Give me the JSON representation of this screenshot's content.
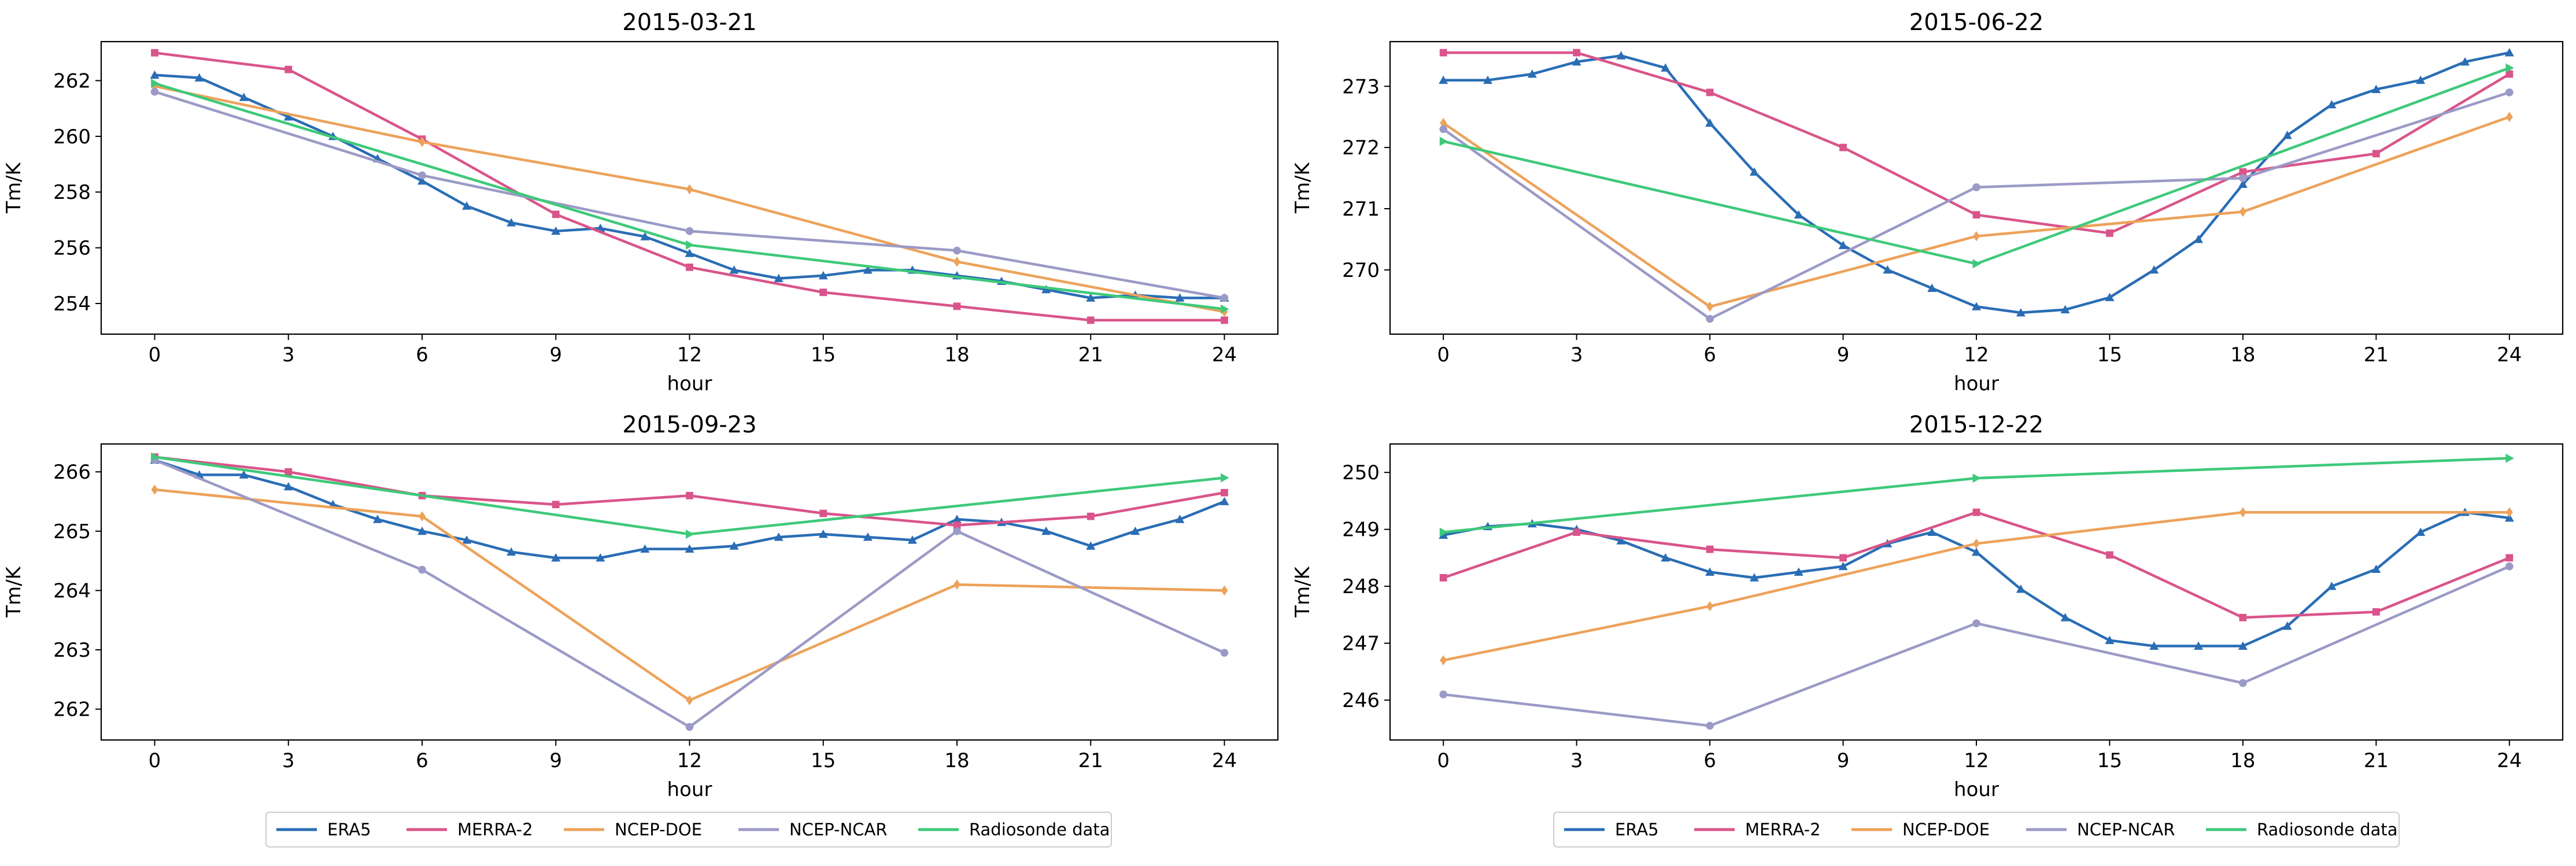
{
  "series_meta": [
    {
      "name": "ERA5",
      "color": "#2a6db5",
      "marker": "triangle"
    },
    {
      "name": "MERRA-2",
      "color": "#d9548a",
      "marker": "square"
    },
    {
      "name": "NCEP-DOE",
      "color": "#eda25a",
      "marker": "diamond"
    },
    {
      "name": "NCEP-NCAR",
      "color": "#9b9ac6",
      "marker": "circle"
    },
    {
      "name": "Radiosonde data",
      "color": "#3ec97a",
      "marker": "triangle-right"
    }
  ],
  "chart_data": [
    {
      "type": "line",
      "title": "2015-03-21",
      "xlabel": "hour",
      "ylabel": "Tm/K",
      "xticks": [
        0,
        3,
        6,
        9,
        12,
        15,
        18,
        21,
        24
      ],
      "yticks": [
        254,
        256,
        258,
        260,
        262
      ],
      "xlim": [
        -1.2,
        25.2
      ],
      "ylim": [
        252.9,
        263.4
      ],
      "series": [
        {
          "name": "ERA5",
          "x": [
            0,
            1,
            2,
            3,
            4,
            5,
            6,
            7,
            8,
            9,
            10,
            11,
            12,
            13,
            14,
            15,
            16,
            17,
            18,
            19,
            20,
            21,
            22,
            23,
            24
          ],
          "values": [
            262.2,
            262.1,
            261.4,
            260.7,
            260.0,
            259.2,
            258.4,
            257.5,
            256.9,
            256.6,
            256.7,
            256.4,
            255.8,
            255.2,
            254.9,
            255.0,
            255.2,
            255.2,
            255.0,
            254.8,
            254.5,
            254.2,
            254.3,
            254.2,
            254.2
          ]
        },
        {
          "name": "MERRA-2",
          "x": [
            0,
            3,
            6,
            9,
            12,
            15,
            18,
            21,
            24
          ],
          "values": [
            263.0,
            262.4,
            259.9,
            257.2,
            255.3,
            254.4,
            253.9,
            253.4,
            253.4
          ]
        },
        {
          "name": "NCEP-DOE",
          "x": [
            0,
            6,
            12,
            18,
            24
          ],
          "values": [
            261.8,
            259.8,
            258.1,
            255.5,
            253.7
          ]
        },
        {
          "name": "NCEP-NCAR",
          "x": [
            0,
            6,
            12,
            18,
            24
          ],
          "values": [
            261.6,
            258.6,
            256.6,
            255.9,
            254.2
          ]
        },
        {
          "name": "Radiosonde data",
          "x": [
            0,
            12,
            24
          ],
          "values": [
            261.9,
            256.1,
            253.8
          ]
        }
      ]
    },
    {
      "type": "line",
      "title": "2015-06-22",
      "xlabel": "hour",
      "ylabel": "Tm/K",
      "xticks": [
        0,
        3,
        6,
        9,
        12,
        15,
        18,
        21,
        24
      ],
      "yticks": [
        270,
        271,
        272,
        273
      ],
      "xlim": [
        -1.2,
        25.2
      ],
      "ylim": [
        268.95,
        273.73
      ],
      "series": [
        {
          "name": "ERA5",
          "x": [
            0,
            1,
            2,
            3,
            4,
            5,
            6,
            7,
            8,
            9,
            10,
            11,
            12,
            13,
            14,
            15,
            16,
            17,
            18,
            19,
            20,
            21,
            22,
            23,
            24
          ],
          "values": [
            273.1,
            273.1,
            273.2,
            273.4,
            273.5,
            273.3,
            272.4,
            271.6,
            270.9,
            270.4,
            270.0,
            269.7,
            269.4,
            269.3,
            269.35,
            269.55,
            270.0,
            270.5,
            271.4,
            272.2,
            272.7,
            272.95,
            273.1,
            273.4,
            273.55
          ]
        },
        {
          "name": "MERRA-2",
          "x": [
            0,
            3,
            6,
            9,
            12,
            15,
            18,
            21,
            24
          ],
          "values": [
            273.55,
            273.55,
            272.9,
            272.0,
            270.9,
            270.6,
            271.6,
            271.9,
            273.2
          ]
        },
        {
          "name": "NCEP-DOE",
          "x": [
            0,
            6,
            12,
            18,
            24
          ],
          "values": [
            272.4,
            269.4,
            270.55,
            270.95,
            272.5
          ]
        },
        {
          "name": "NCEP-NCAR",
          "x": [
            0,
            6,
            12,
            18,
            24
          ],
          "values": [
            272.3,
            269.2,
            271.35,
            271.5,
            272.9
          ]
        },
        {
          "name": "Radiosonde data",
          "x": [
            0,
            12,
            24
          ],
          "values": [
            272.1,
            270.1,
            273.3
          ]
        }
      ]
    },
    {
      "type": "line",
      "title": "2015-09-23",
      "xlabel": "hour",
      "ylabel": "Tm/K",
      "xticks": [
        0,
        3,
        6,
        9,
        12,
        15,
        18,
        21,
        24
      ],
      "yticks": [
        262,
        263,
        264,
        265,
        266
      ],
      "xlim": [
        -1.2,
        25.2
      ],
      "ylim": [
        261.48,
        266.47
      ],
      "series": [
        {
          "name": "ERA5",
          "x": [
            0,
            1,
            2,
            3,
            4,
            5,
            6,
            7,
            8,
            9,
            10,
            11,
            12,
            13,
            14,
            15,
            16,
            17,
            18,
            19,
            20,
            21,
            22,
            23,
            24
          ],
          "values": [
            266.2,
            265.95,
            265.95,
            265.75,
            265.45,
            265.2,
            265.0,
            264.85,
            264.65,
            264.55,
            264.55,
            264.7,
            264.7,
            264.75,
            264.9,
            264.95,
            264.9,
            264.85,
            265.2,
            265.15,
            265.0,
            264.75,
            265.0,
            265.2,
            265.5
          ]
        },
        {
          "name": "MERRA-2",
          "x": [
            0,
            3,
            6,
            9,
            12,
            15,
            18,
            21,
            24
          ],
          "values": [
            266.25,
            266.0,
            265.6,
            265.45,
            265.6,
            265.3,
            265.1,
            265.25,
            265.65
          ]
        },
        {
          "name": "NCEP-DOE",
          "x": [
            0,
            6,
            12,
            18,
            24
          ],
          "values": [
            265.7,
            265.25,
            262.15,
            264.1,
            264.0
          ]
        },
        {
          "name": "NCEP-NCAR",
          "x": [
            0,
            6,
            12,
            18,
            24
          ],
          "values": [
            266.2,
            264.35,
            261.7,
            265.0,
            262.95
          ]
        },
        {
          "name": "Radiosonde data",
          "x": [
            0,
            12,
            24
          ],
          "values": [
            266.25,
            264.95,
            265.9
          ]
        }
      ]
    },
    {
      "type": "line",
      "title": "2015-12-22",
      "xlabel": "hour",
      "ylabel": "Tm/K",
      "xticks": [
        0,
        3,
        6,
        9,
        12,
        15,
        18,
        21,
        24
      ],
      "yticks": [
        246,
        247,
        248,
        249,
        250
      ],
      "xlim": [
        -1.2,
        25.2
      ],
      "ylim": [
        245.3,
        250.5
      ],
      "series": [
        {
          "name": "ERA5",
          "x": [
            0,
            1,
            2,
            3,
            4,
            5,
            6,
            7,
            8,
            9,
            10,
            11,
            12,
            13,
            14,
            15,
            16,
            17,
            18,
            19,
            20,
            21,
            22,
            23,
            24
          ],
          "values": [
            248.9,
            249.05,
            249.1,
            249.0,
            248.8,
            248.5,
            248.25,
            248.15,
            248.25,
            248.35,
            248.75,
            248.95,
            248.6,
            247.95,
            247.45,
            247.05,
            246.95,
            246.95,
            246.95,
            247.3,
            248.0,
            248.3,
            248.95,
            249.3,
            249.2
          ]
        },
        {
          "name": "MERRA-2",
          "x": [
            0,
            3,
            6,
            9,
            12,
            15,
            18,
            21,
            24
          ],
          "values": [
            248.15,
            248.95,
            248.65,
            248.5,
            249.3,
            248.55,
            247.45,
            247.55,
            248.5
          ]
        },
        {
          "name": "NCEP-DOE",
          "x": [
            0,
            6,
            12,
            18,
            24
          ],
          "values": [
            246.7,
            247.65,
            248.75,
            249.3,
            249.3
          ]
        },
        {
          "name": "NCEP-NCAR",
          "x": [
            0,
            6,
            12,
            18,
            24
          ],
          "values": [
            246.1,
            245.55,
            247.35,
            246.3,
            248.35
          ]
        },
        {
          "name": "Radiosonde data",
          "x": [
            0,
            12,
            24
          ],
          "values": [
            248.95,
            249.9,
            250.25
          ]
        }
      ]
    }
  ]
}
